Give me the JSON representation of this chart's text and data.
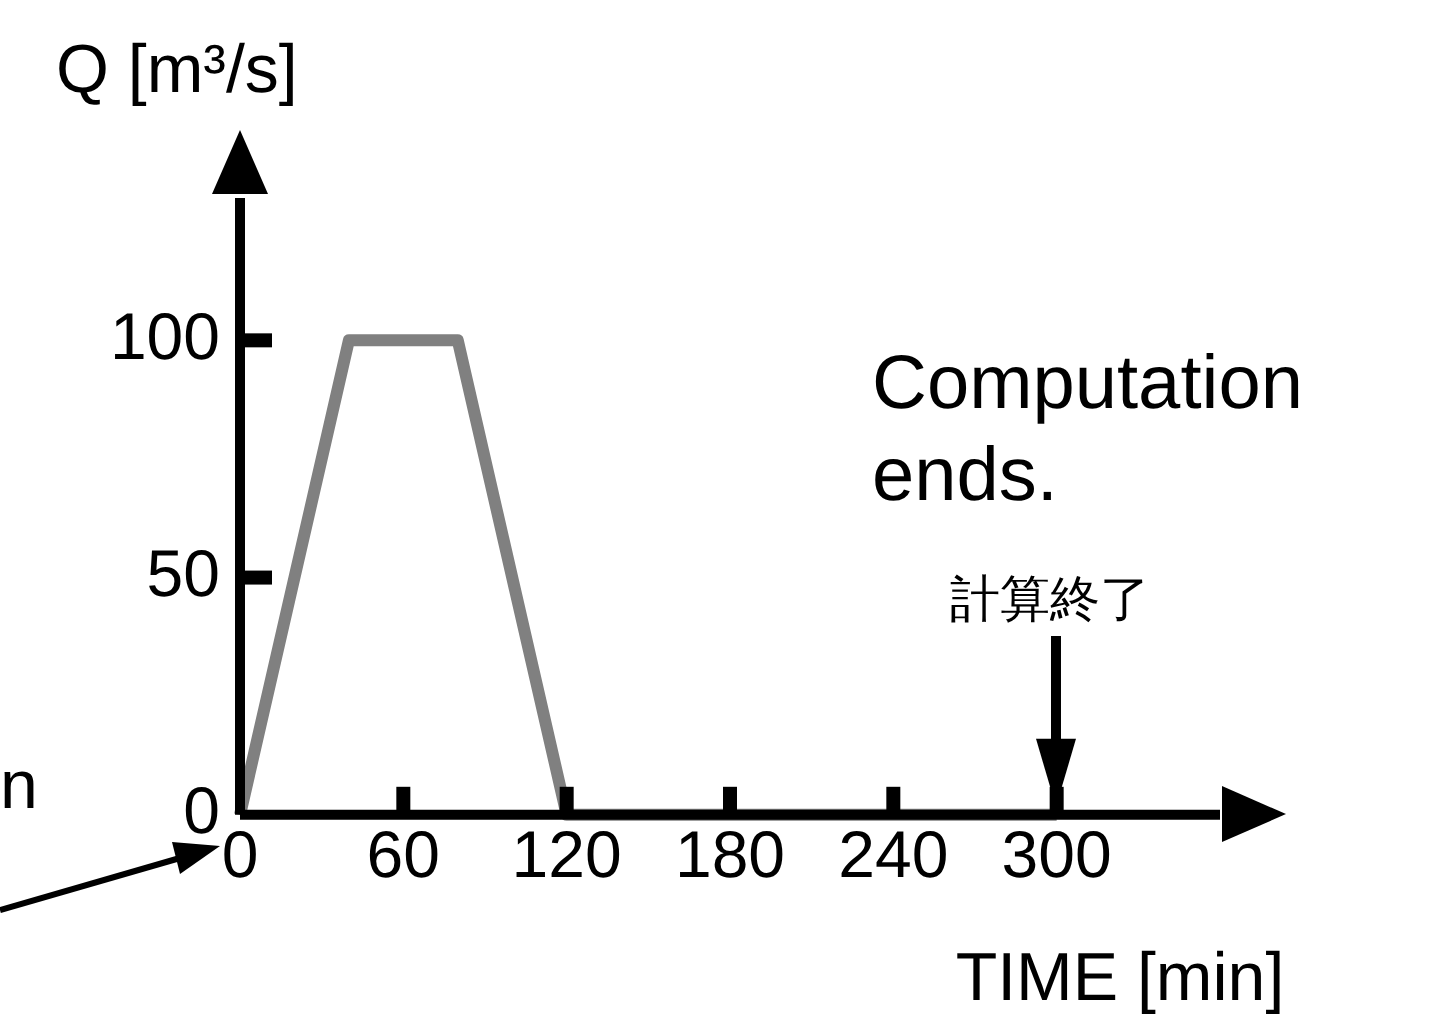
{
  "chart_data": {
    "type": "line",
    "xlabel": "TIME [min]",
    "ylabel": "Q [m³/s]",
    "x": [
      0,
      40,
      80,
      120,
      300
    ],
    "values": [
      0,
      100,
      100,
      0,
      0
    ],
    "color": "#808080",
    "xlim": [
      0,
      360
    ],
    "ylim": [
      0,
      130
    ],
    "xticks": [
      0,
      60,
      120,
      180,
      240,
      300
    ],
    "yticks": [
      0,
      50,
      100
    ],
    "marker": "none",
    "grid": false,
    "legend": false,
    "annotations": [
      "Computation ends.",
      "計算終了",
      "n"
    ]
  }
}
